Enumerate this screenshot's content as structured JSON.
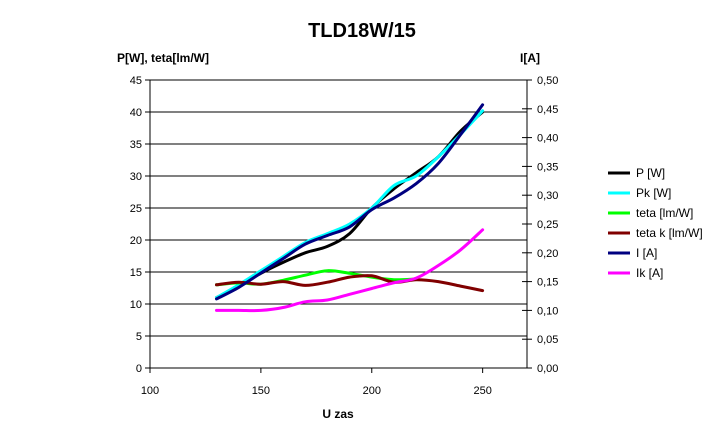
{
  "chart_data": {
    "type": "line",
    "title": "TLD18W/15",
    "xlabel": "U zas",
    "ylabel_left": "P[W], teta[lm/W]",
    "ylabel_right": "I[A]",
    "xlim": [
      100,
      270
    ],
    "xticks": [
      100,
      150,
      200,
      250
    ],
    "ylim_left": [
      0,
      45
    ],
    "yticks_left": [
      "0",
      "5",
      "10",
      "15",
      "20",
      "25",
      "30",
      "35",
      "40",
      "45"
    ],
    "ylim_right": [
      0,
      0.5
    ],
    "yticks_right": [
      "0,00",
      "0,05",
      "0,10",
      "0,15",
      "0,20",
      "0,25",
      "0,30",
      "0,35",
      "0,40",
      "0,45",
      "0,50"
    ],
    "grid": "horizontal",
    "legend_position": "right",
    "series": [
      {
        "name": "P [W]",
        "axis": "left",
        "color": "#000000",
        "x": [
          130,
          140,
          150,
          160,
          170,
          180,
          190,
          200,
          210,
          220,
          230,
          240,
          250
        ],
        "y": [
          11,
          12.8,
          14.8,
          16.5,
          18,
          19,
          21,
          25,
          28,
          30.5,
          33,
          37,
          40
        ]
      },
      {
        "name": "Pk [W]",
        "axis": "left",
        "color": "#00ffff",
        "x": [
          130,
          140,
          150,
          160,
          170,
          180,
          190,
          200,
          210,
          220,
          230,
          240,
          250
        ],
        "y": [
          11,
          13,
          15.2,
          17.4,
          19.6,
          21,
          22.5,
          25,
          28.5,
          30,
          33,
          36.5,
          40.2
        ]
      },
      {
        "name": "teta [lm/W]",
        "axis": "left",
        "color": "#00ff00",
        "x": [
          130,
          140,
          150,
          160,
          170,
          180,
          190,
          200,
          210,
          220
        ],
        "y": [
          13,
          13.3,
          13.1,
          13.7,
          14.5,
          15.2,
          14.8,
          14.2,
          13.8,
          13.9
        ]
      },
      {
        "name": "teta k [lm/W]",
        "axis": "left",
        "color": "#800000",
        "x": [
          130,
          140,
          150,
          160,
          170,
          180,
          190,
          200,
          210,
          220,
          230,
          240,
          250
        ],
        "y": [
          13,
          13.4,
          13.1,
          13.5,
          12.9,
          13.4,
          14.2,
          14.4,
          13.4,
          13.8,
          13.5,
          12.8,
          12.1
        ]
      },
      {
        "name": "I [A]",
        "axis": "right",
        "color": "#000080",
        "x": [
          130,
          140,
          150,
          160,
          170,
          180,
          190,
          200,
          210,
          220,
          230,
          240,
          250
        ],
        "y": [
          0.12,
          0.14,
          0.165,
          0.19,
          0.215,
          0.23,
          0.245,
          0.275,
          0.295,
          0.32,
          0.355,
          0.405,
          0.457
        ]
      },
      {
        "name": "Ik [A]",
        "axis": "right",
        "color": "#ff00ff",
        "x": [
          130,
          140,
          150,
          160,
          170,
          180,
          190,
          200,
          210,
          220,
          230,
          240,
          250
        ],
        "y": [
          0.1,
          0.1,
          0.1,
          0.105,
          0.115,
          0.118,
          0.128,
          0.138,
          0.148,
          0.156,
          0.178,
          0.205,
          0.24
        ]
      }
    ]
  }
}
